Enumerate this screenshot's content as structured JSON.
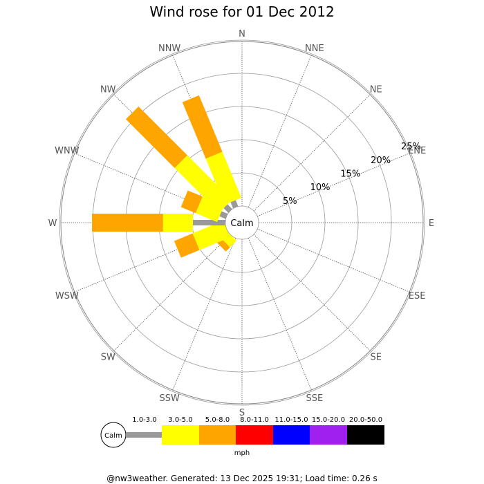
{
  "chart_data": {
    "type": "wind-rose",
    "title": "Wind rose for 01 Dec 2012",
    "directions": [
      "N",
      "NNE",
      "NE",
      "ENE",
      "E",
      "ESE",
      "SE",
      "SSE",
      "S",
      "SSW",
      "SW",
      "WSW",
      "W",
      "WNW",
      "NW",
      "NNW"
    ],
    "radial_ticks": [
      "5%",
      "10%",
      "15%",
      "20%",
      "25%"
    ],
    "radial_tick_values": [
      5,
      10,
      15,
      20,
      25
    ],
    "calm_label": "Calm",
    "bins": [
      "1.0-3.0",
      "3.0-5.0",
      "5.0-8.0",
      "8.0-11.0",
      "11.0-15.0",
      "15.0-20.0",
      "20.0-50.0"
    ],
    "bin_colors": [
      "#999999",
      "#ffff00",
      "#ffa500",
      "#ff0000",
      "#0000ff",
      "#a020f0",
      "#000000"
    ],
    "unit": "mph",
    "series": [
      {
        "direction": "SW",
        "values": [
          0.0,
          1.4,
          0.9,
          0,
          0,
          0,
          0
        ]
      },
      {
        "direction": "WSW",
        "values": [
          0.0,
          5.0,
          3.0,
          0,
          0,
          0,
          0
        ]
      },
      {
        "direction": "W",
        "values": [
          4.9,
          4.5,
          10.7,
          0,
          0,
          0,
          0
        ]
      },
      {
        "direction": "WNW",
        "values": [
          1.0,
          3.5,
          2.4,
          0,
          0,
          0,
          0
        ]
      },
      {
        "direction": "NW",
        "values": [
          1.0,
          9.5,
          10.4,
          0,
          0,
          0,
          0
        ]
      },
      {
        "direction": "NNW",
        "values": [
          1.0,
          7.5,
          9.2,
          0,
          0,
          0,
          0
        ]
      }
    ]
  },
  "footer": "@nw3weather. Generated: 13 Dec 2025 19:31; Load time: 0.26 s"
}
